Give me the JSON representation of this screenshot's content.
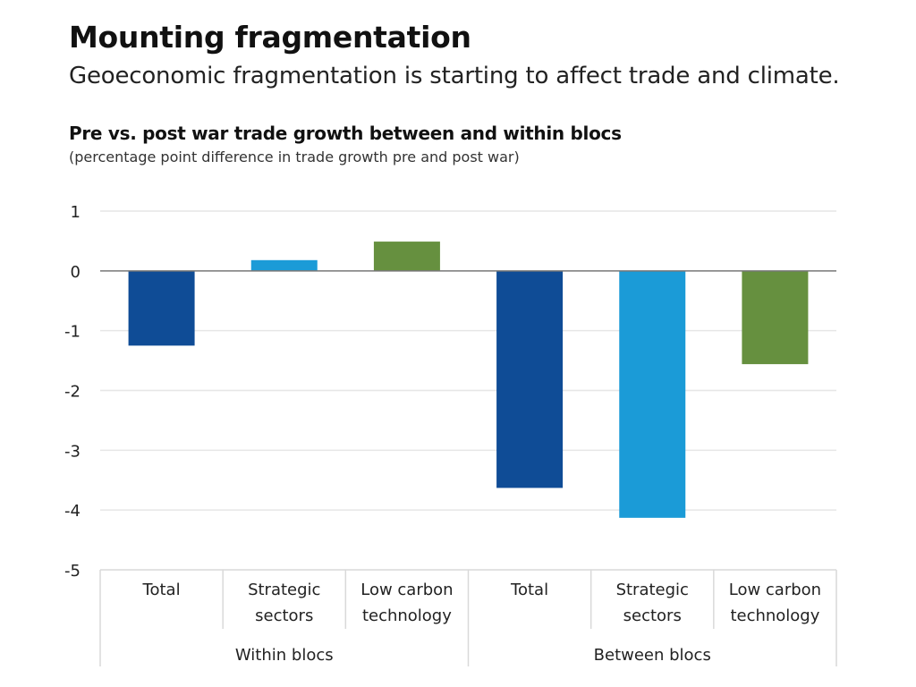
{
  "header": {
    "title": "Mounting fragmentation",
    "subtitle": "Geoeconomic fragmentation is starting to affect trade and climate."
  },
  "chart_data": {
    "type": "bar",
    "title": "Pre vs. post war trade growth between and within blocs",
    "subtitle": "(percentage point difference in trade growth pre and post war)",
    "xlabel": "",
    "ylabel": "",
    "ylim": [
      -5,
      1
    ],
    "yticks": [
      1,
      0,
      -1,
      -2,
      -3,
      -4,
      -5
    ],
    "ytick_labels": [
      "1",
      "0",
      "-1",
      "-2",
      "-3",
      "-4",
      "-5"
    ],
    "grid": true,
    "groups": [
      {
        "name": "Within blocs",
        "categories": [
          [
            "Total"
          ],
          [
            "Strategic",
            "sectors"
          ],
          [
            "Low carbon",
            "technology"
          ]
        ]
      },
      {
        "name": "Between blocs",
        "categories": [
          [
            "Total"
          ],
          [
            "Strategic",
            "sectors"
          ],
          [
            "Low carbon",
            "technology"
          ]
        ]
      }
    ],
    "categories": [
      "Within blocs - Total",
      "Within blocs - Strategic sectors",
      "Within blocs - Low carbon technology",
      "Between blocs - Total",
      "Between blocs - Strategic sectors",
      "Between blocs - Low carbon technology"
    ],
    "values": [
      -1.25,
      0.18,
      0.49,
      -3.63,
      -4.13,
      -1.56
    ],
    "colors": [
      "#0f4c96",
      "#1b9bd7",
      "#66903f",
      "#0f4c96",
      "#1b9bd7",
      "#66903f"
    ]
  }
}
